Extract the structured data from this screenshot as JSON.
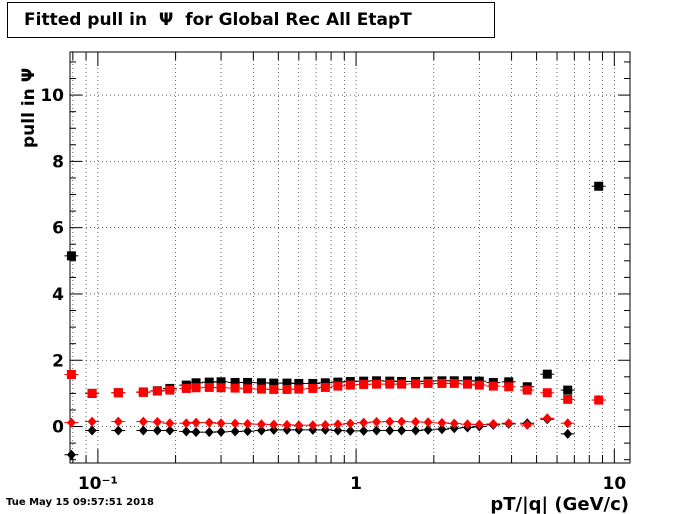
{
  "chart_data": {
    "type": "scatter",
    "title": "Fitted pull in  Ψ  for Global Rec All EtapT",
    "xlabel": "pT/|q| (GeV/c)",
    "ylabel": "pull in  Ψ",
    "xscale": "log",
    "xlim": [
      0.078,
      11.5
    ],
    "ylim": [
      -1.1,
      11.3
    ],
    "grid": true,
    "yticks": [
      0,
      2,
      4,
      6,
      8,
      10
    ],
    "xtick_labels": [
      "10⁻¹",
      "1",
      "10"
    ],
    "timestamp": "Tue May 15 09:57:51 2018",
    "series": [
      {
        "marker": "square",
        "color": "#000000",
        "points": [
          [
            0.079,
            5.15
          ],
          [
            0.095,
            1.0
          ],
          [
            0.12,
            1.02
          ],
          [
            0.15,
            1.04
          ],
          [
            0.17,
            1.08
          ],
          [
            0.19,
            1.15
          ],
          [
            0.22,
            1.25
          ],
          [
            0.24,
            1.32
          ],
          [
            0.27,
            1.34
          ],
          [
            0.3,
            1.35
          ],
          [
            0.34,
            1.33
          ],
          [
            0.38,
            1.33
          ],
          [
            0.43,
            1.32
          ],
          [
            0.48,
            1.31
          ],
          [
            0.54,
            1.31
          ],
          [
            0.6,
            1.3
          ],
          [
            0.68,
            1.3
          ],
          [
            0.76,
            1.32
          ],
          [
            0.85,
            1.34
          ],
          [
            0.95,
            1.36
          ],
          [
            1.07,
            1.37
          ],
          [
            1.2,
            1.38
          ],
          [
            1.35,
            1.37
          ],
          [
            1.5,
            1.36
          ],
          [
            1.7,
            1.36
          ],
          [
            1.9,
            1.37
          ],
          [
            2.15,
            1.38
          ],
          [
            2.4,
            1.38
          ],
          [
            2.7,
            1.38
          ],
          [
            3.0,
            1.37
          ],
          [
            3.4,
            1.33
          ],
          [
            3.9,
            1.35
          ],
          [
            4.6,
            1.2
          ],
          [
            5.5,
            1.58
          ],
          [
            6.6,
            1.1
          ],
          [
            8.7,
            7.25
          ]
        ]
      },
      {
        "marker": "square",
        "color": "#ff0000",
        "points": [
          [
            0.079,
            1.57
          ],
          [
            0.095,
            1.0
          ],
          [
            0.12,
            1.02
          ],
          [
            0.15,
            1.03
          ],
          [
            0.17,
            1.07
          ],
          [
            0.19,
            1.1
          ],
          [
            0.22,
            1.15
          ],
          [
            0.24,
            1.17
          ],
          [
            0.27,
            1.18
          ],
          [
            0.3,
            1.17
          ],
          [
            0.34,
            1.16
          ],
          [
            0.38,
            1.14
          ],
          [
            0.43,
            1.13
          ],
          [
            0.48,
            1.12
          ],
          [
            0.54,
            1.12
          ],
          [
            0.6,
            1.13
          ],
          [
            0.68,
            1.15
          ],
          [
            0.76,
            1.18
          ],
          [
            0.85,
            1.22
          ],
          [
            0.95,
            1.25
          ],
          [
            1.07,
            1.27
          ],
          [
            1.2,
            1.28
          ],
          [
            1.35,
            1.28
          ],
          [
            1.5,
            1.28
          ],
          [
            1.7,
            1.29
          ],
          [
            1.9,
            1.3
          ],
          [
            2.15,
            1.3
          ],
          [
            2.4,
            1.3
          ],
          [
            2.7,
            1.28
          ],
          [
            3.0,
            1.25
          ],
          [
            3.4,
            1.22
          ],
          [
            3.9,
            1.2
          ],
          [
            4.6,
            1.1
          ],
          [
            5.5,
            1.02
          ],
          [
            6.6,
            0.82
          ],
          [
            8.7,
            0.8
          ]
        ]
      },
      {
        "marker": "diamond",
        "color": "#000000",
        "points": [
          [
            0.079,
            -0.85
          ],
          [
            0.095,
            -0.12
          ],
          [
            0.12,
            -0.12
          ],
          [
            0.15,
            -0.12
          ],
          [
            0.17,
            -0.12
          ],
          [
            0.19,
            -0.12
          ],
          [
            0.22,
            -0.15
          ],
          [
            0.24,
            -0.17
          ],
          [
            0.27,
            -0.17
          ],
          [
            0.3,
            -0.16
          ],
          [
            0.34,
            -0.15
          ],
          [
            0.38,
            -0.14
          ],
          [
            0.43,
            -0.12
          ],
          [
            0.48,
            -0.1
          ],
          [
            0.54,
            -0.1
          ],
          [
            0.6,
            -0.1
          ],
          [
            0.68,
            -0.1
          ],
          [
            0.76,
            -0.1
          ],
          [
            0.85,
            -0.12
          ],
          [
            0.95,
            -0.13
          ],
          [
            1.07,
            -0.13
          ],
          [
            1.2,
            -0.12
          ],
          [
            1.35,
            -0.12
          ],
          [
            1.5,
            -0.12
          ],
          [
            1.7,
            -0.12
          ],
          [
            1.9,
            -0.1
          ],
          [
            2.15,
            -0.08
          ],
          [
            2.4,
            -0.05
          ],
          [
            2.7,
            -0.03
          ],
          [
            3.0,
            0.0
          ],
          [
            3.4,
            0.05
          ],
          [
            3.9,
            0.08
          ],
          [
            4.6,
            0.1
          ],
          [
            5.5,
            0.22
          ],
          [
            6.6,
            -0.22
          ],
          [
            8.7,
            0.8
          ]
        ]
      },
      {
        "marker": "diamond",
        "color": "#ff0000",
        "points": [
          [
            0.079,
            0.12
          ],
          [
            0.095,
            0.15
          ],
          [
            0.12,
            0.15
          ],
          [
            0.15,
            0.15
          ],
          [
            0.17,
            0.14
          ],
          [
            0.19,
            0.1
          ],
          [
            0.22,
            0.1
          ],
          [
            0.24,
            0.12
          ],
          [
            0.27,
            0.12
          ],
          [
            0.3,
            0.1
          ],
          [
            0.34,
            0.09
          ],
          [
            0.38,
            0.08
          ],
          [
            0.43,
            0.07
          ],
          [
            0.48,
            0.06
          ],
          [
            0.54,
            0.05
          ],
          [
            0.6,
            0.04
          ],
          [
            0.68,
            0.04
          ],
          [
            0.76,
            0.05
          ],
          [
            0.85,
            0.07
          ],
          [
            0.95,
            0.09
          ],
          [
            1.07,
            0.12
          ],
          [
            1.2,
            0.14
          ],
          [
            1.35,
            0.15
          ],
          [
            1.5,
            0.15
          ],
          [
            1.7,
            0.14
          ],
          [
            1.9,
            0.13
          ],
          [
            2.15,
            0.11
          ],
          [
            2.4,
            0.09
          ],
          [
            2.7,
            0.07
          ],
          [
            3.0,
            0.06
          ],
          [
            3.4,
            0.08
          ],
          [
            3.9,
            0.1
          ],
          [
            4.6,
            0.05
          ],
          [
            5.5,
            0.25
          ],
          [
            6.6,
            0.1
          ],
          [
            8.7,
            0.8
          ]
        ]
      }
    ]
  }
}
